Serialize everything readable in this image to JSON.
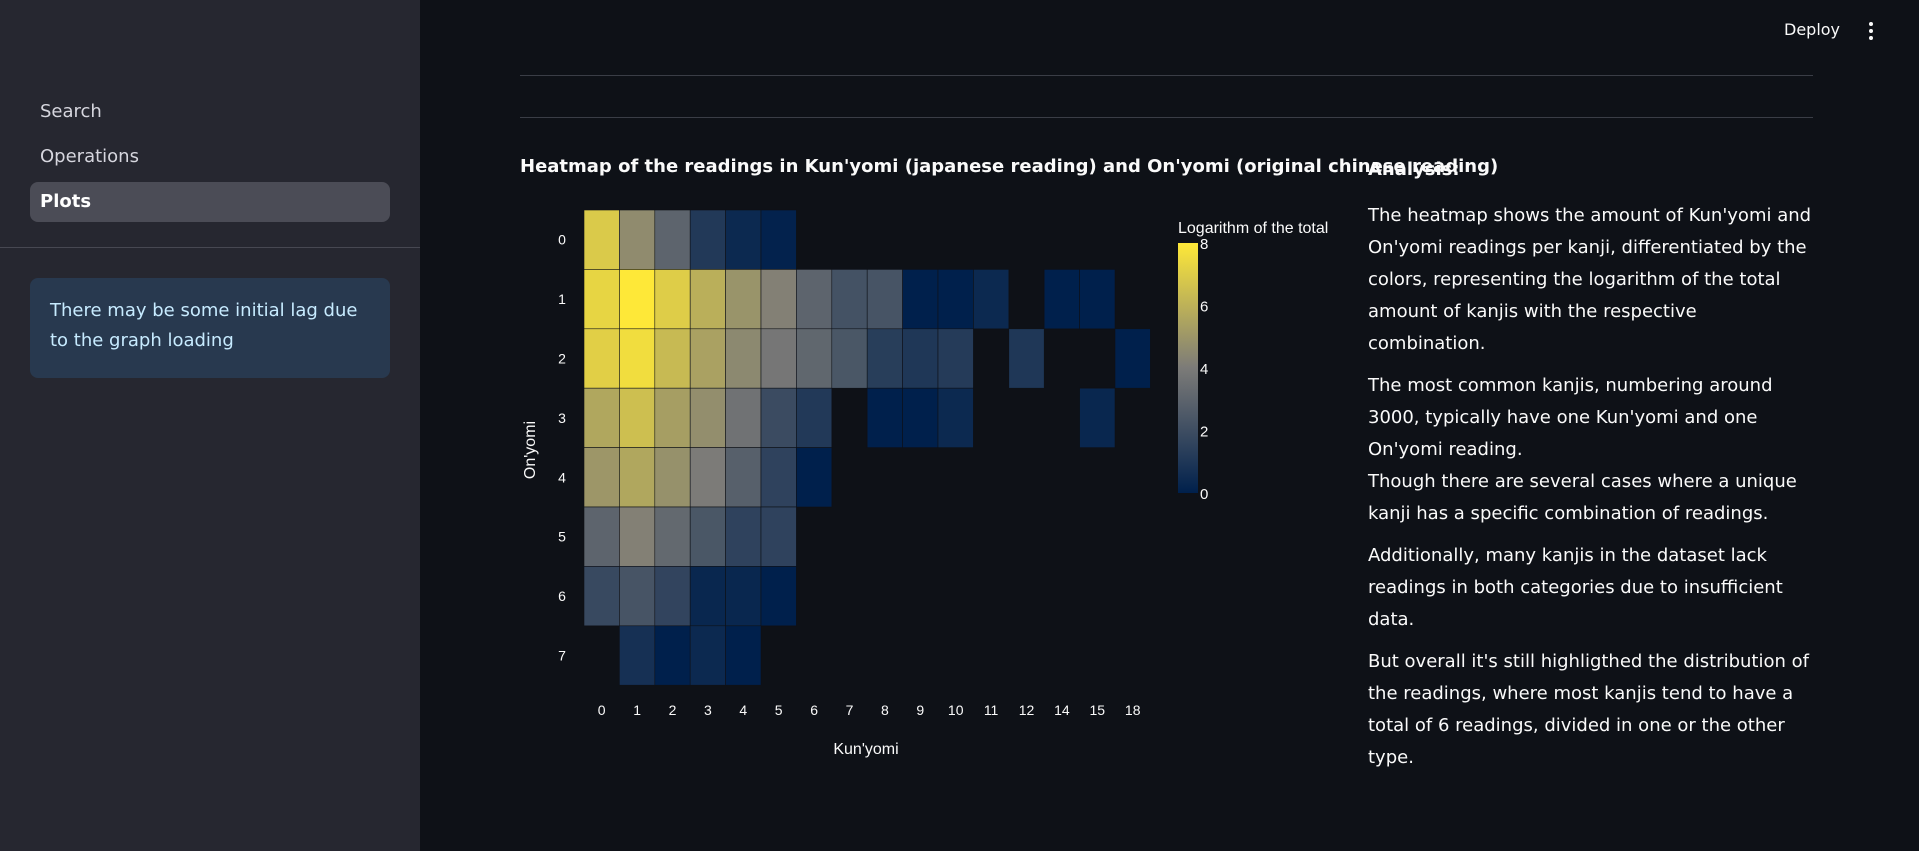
{
  "topbar": {
    "deploy_label": "Deploy",
    "menu_icon": "kebab-menu-icon"
  },
  "sidebar": {
    "items": [
      {
        "label": "Search",
        "active": false
      },
      {
        "label": "Operations",
        "active": false
      },
      {
        "label": "Plots",
        "active": true
      }
    ],
    "info": "There may be some initial lag due to the graph loading"
  },
  "chart": {
    "title": "Heatmap of the readings in Kun'yomi (japanese reading) and On'yomi (original chinese reading)"
  },
  "chart_data": {
    "type": "heatmap",
    "title": "Heatmap of the readings in Kun'yomi (japanese reading) and On'yomi (original chinese reading)",
    "xlabel": "Kun'yomi",
    "ylabel": "On'yomi",
    "x": [
      "0",
      "1",
      "2",
      "3",
      "4",
      "5",
      "6",
      "7",
      "8",
      "9",
      "10",
      "11",
      "12",
      "14",
      "15",
      "18"
    ],
    "y": [
      "0",
      "1",
      "2",
      "3",
      "4",
      "5",
      "6",
      "7"
    ],
    "colorbar": {
      "title": "Logarithm of the total",
      "range": [
        0,
        8
      ],
      "ticks": [
        0,
        2,
        4,
        6,
        8
      ]
    },
    "colorscale": [
      "#00204c",
      "#7c7b78",
      "#fee838"
    ],
    "z": [
      [
        6.9,
        4.6,
        3.0,
        1.1,
        0.4,
        0.1,
        null,
        null,
        null,
        null,
        null,
        null,
        null,
        null,
        null,
        null
      ],
      [
        7.3,
        8.0,
        7.0,
        5.9,
        4.9,
        4.2,
        3.0,
        2.2,
        2.3,
        0.0,
        0.0,
        0.4,
        null,
        0.0,
        0.0,
        null
      ],
      [
        7.1,
        7.6,
        6.3,
        5.4,
        4.5,
        3.8,
        3.1,
        2.4,
        1.3,
        1.0,
        1.2,
        null,
        1.0,
        null,
        null,
        0.0
      ],
      [
        5.6,
        6.5,
        5.3,
        4.7,
        3.6,
        1.9,
        1.1,
        null,
        0.0,
        0.0,
        0.4,
        null,
        null,
        null,
        0.3,
        null
      ],
      [
        5.0,
        5.6,
        4.8,
        4.0,
        2.8,
        1.5,
        0.0,
        null,
        null,
        null,
        null,
        null,
        null,
        null,
        null,
        null
      ],
      [
        3.0,
        4.2,
        3.2,
        2.4,
        1.5,
        1.5,
        null,
        null,
        null,
        null,
        null,
        null,
        null,
        null,
        null,
        null
      ],
      [
        1.8,
        2.3,
        1.6,
        0.3,
        0.3,
        0.0,
        null,
        null,
        null,
        null,
        null,
        null,
        null,
        null,
        null,
        null
      ],
      [
        null,
        0.7,
        0.0,
        0.4,
        0.0,
        null,
        null,
        null,
        null,
        null,
        null,
        null,
        null,
        null,
        null,
        null
      ]
    ]
  },
  "analysis": {
    "heading": "Analysis:",
    "p1": "The heatmap shows the amount of Kun'yomi and On'yomi readings per kanji, differentiated by the colors, representing the logarithm of the total amount of kanjis with the respective combination.",
    "p2a": "The most common kanjis, numbering around 3000, typically have one Kun'yomi and one On'yomi reading.",
    "p2b": "Though there are several cases where a unique kanji has a specific combination of readings.",
    "p3": "Additionally, many kanjis in the dataset lack readings in both categories due to insufficient data.",
    "p4": "But overall it's still highligthed the distribution of the readings, where most kanjis tend to have a total of 6 readings, divided in one or the other type."
  }
}
